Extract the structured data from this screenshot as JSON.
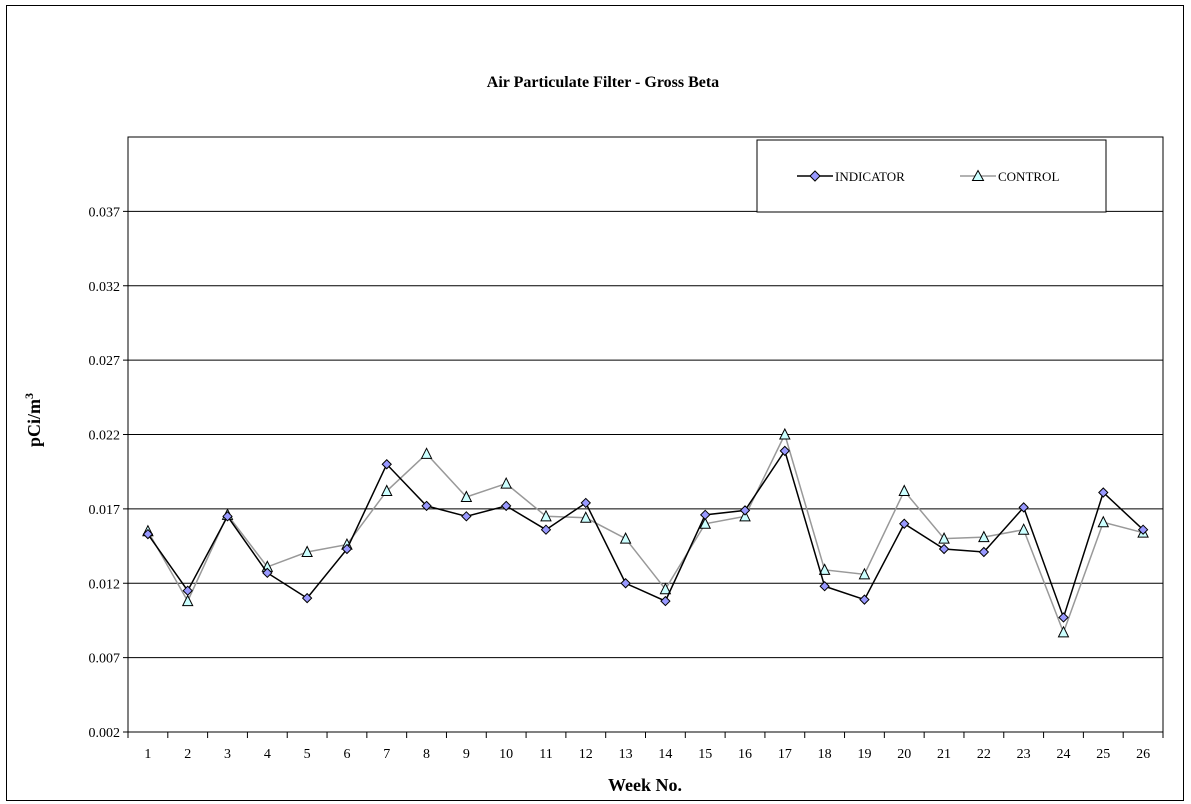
{
  "chart_data": {
    "type": "line",
    "title": "Air Particulate Filter - Gross Beta",
    "xlabel": "Week No.",
    "ylabel_main": "pCi/m",
    "ylabel_sup": "3",
    "ylim": [
      0.002,
      0.042
    ],
    "yticks": [
      0.002,
      0.007,
      0.012,
      0.017,
      0.022,
      0.027,
      0.032,
      0.037
    ],
    "ytick_labels": [
      "0.002",
      "0.007",
      "0.012",
      "0.017",
      "0.022",
      "0.027",
      "0.032",
      "0.037"
    ],
    "grid": true,
    "legend_position": "top-right",
    "categories": [
      "1",
      "2",
      "3",
      "4",
      "5",
      "6",
      "7",
      "8",
      "9",
      "10",
      "11",
      "12",
      "13",
      "14",
      "15",
      "16",
      "17",
      "18",
      "19",
      "20",
      "21",
      "22",
      "23",
      "24",
      "25",
      "26"
    ],
    "series": [
      {
        "name": "INDICATOR",
        "color": "#000000",
        "marker": "diamond",
        "marker_fill": "#9999ff",
        "values": [
          0.0153,
          0.0115,
          0.0165,
          0.0127,
          0.011,
          0.0143,
          0.02,
          0.0172,
          0.0165,
          0.0172,
          0.0156,
          0.0174,
          0.012,
          0.0108,
          0.0166,
          0.0169,
          0.0209,
          0.0118,
          0.0109,
          0.016,
          0.0143,
          0.0141,
          0.0171,
          0.0097,
          0.0181,
          0.0156
        ]
      },
      {
        "name": "CONTROL",
        "color": "#999999",
        "marker": "triangle",
        "marker_fill": "#ccffff",
        "values": [
          0.0155,
          0.0108,
          0.0166,
          0.0131,
          0.0141,
          0.0146,
          0.0182,
          0.0207,
          0.0178,
          0.0187,
          0.0165,
          0.0164,
          0.015,
          0.0116,
          0.016,
          0.0165,
          0.022,
          0.0129,
          0.0126,
          0.0182,
          0.015,
          0.0151,
          0.0156,
          0.0087,
          0.0161,
          0.0154
        ]
      }
    ]
  }
}
